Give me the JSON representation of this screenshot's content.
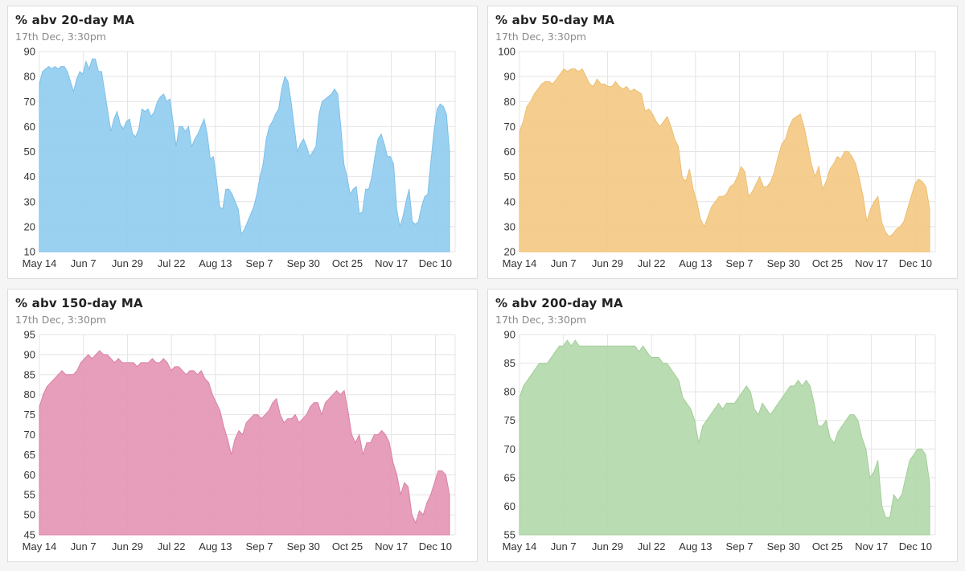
{
  "charts": [
    {
      "title": "% abv 20-day MA",
      "subtitle": "17th Dec, 3:30pm",
      "color": "#8fccf0",
      "line_color": "#7fbfe8"
    },
    {
      "title": "% abv 50-day MA",
      "subtitle": "17th Dec, 3:30pm",
      "color": "#f4c983",
      "line_color": "#ecbd72"
    },
    {
      "title": "% abv 150-day MA",
      "subtitle": "17th Dec, 3:30pm",
      "color": "#e393b3",
      "line_color": "#d982a5"
    },
    {
      "title": "% abv 200-day MA",
      "subtitle": "17th Dec, 3:30pm",
      "color": "#b2d8aa",
      "line_color": "#a3cd9a"
    }
  ],
  "chart_data": [
    {
      "type": "area",
      "title": "% abv 20-day MA",
      "xlabel": "",
      "ylabel": "",
      "x_ticks": [
        "May 14",
        "Jun 7",
        "Jun 29",
        "Jul 22",
        "Aug 13",
        "Sep 7",
        "Sep 30",
        "Oct 25",
        "Nov 17",
        "Dec 10"
      ],
      "y_ticks": [
        10,
        20,
        30,
        40,
        50,
        60,
        70,
        80,
        90
      ],
      "ylim": [
        10,
        90
      ],
      "grid": true,
      "values": [
        77,
        82,
        83,
        84,
        83,
        84,
        83,
        84,
        84,
        82,
        78,
        74,
        79,
        82,
        81,
        86,
        83,
        87,
        87,
        82,
        82,
        74,
        66,
        58,
        63,
        66,
        61,
        59,
        62,
        63,
        57,
        56,
        59,
        67,
        66,
        67,
        64,
        66,
        70,
        72,
        73,
        70,
        71,
        62,
        52,
        60,
        60,
        58,
        60,
        52,
        55,
        57,
        60,
        63,
        57,
        47,
        48,
        39,
        28,
        27,
        35,
        35,
        33,
        30,
        27,
        17,
        19,
        22,
        25,
        28,
        33,
        40,
        45,
        55,
        60,
        62,
        65,
        67,
        75,
        80,
        78,
        70,
        60,
        50,
        53,
        55,
        52,
        48,
        50,
        52,
        65,
        70,
        71,
        72,
        73,
        75,
        73,
        60,
        45,
        40,
        33,
        35,
        36,
        25,
        26,
        35,
        35,
        40,
        48,
        55,
        57,
        53,
        48,
        48,
        45,
        27,
        20,
        24,
        30,
        35,
        22,
        21,
        22,
        28,
        32,
        33,
        46,
        58,
        67,
        69,
        68,
        65,
        50
      ]
    },
    {
      "type": "area",
      "title": "% abv 50-day MA",
      "xlabel": "",
      "ylabel": "",
      "x_ticks": [
        "May 14",
        "Jun 7",
        "Jun 29",
        "Jul 22",
        "Aug 13",
        "Sep 7",
        "Sep 30",
        "Oct 25",
        "Nov 17",
        "Dec 10"
      ],
      "y_ticks": [
        20,
        30,
        40,
        50,
        60,
        70,
        80,
        90,
        100
      ],
      "ylim": [
        20,
        100
      ],
      "grid": true,
      "values": [
        68,
        72,
        78,
        80,
        83,
        85,
        87,
        88,
        88,
        87,
        89,
        91,
        93,
        92,
        93,
        93,
        92,
        93,
        90,
        87,
        86,
        89,
        87,
        87,
        86,
        86,
        88,
        86,
        85,
        86,
        84,
        85,
        84,
        83,
        76,
        77,
        75,
        72,
        70,
        72,
        74,
        70,
        65,
        62,
        50,
        48,
        53,
        45,
        40,
        33,
        30,
        34,
        38,
        40,
        42,
        42,
        43,
        46,
        47,
        50,
        54,
        52,
        42,
        44,
        47,
        50,
        46,
        46,
        48,
        52,
        58,
        63,
        65,
        70,
        73,
        74,
        75,
        70,
        63,
        55,
        50,
        54,
        45,
        48,
        53,
        55,
        58,
        57,
        60,
        60,
        58,
        55,
        49,
        42,
        32,
        37,
        40,
        42,
        32,
        28,
        26,
        27,
        29,
        30,
        32,
        37,
        42,
        47,
        49,
        48,
        46,
        37
      ]
    },
    {
      "type": "area",
      "title": "% abv 150-day MA",
      "xlabel": "",
      "ylabel": "",
      "x_ticks": [
        "May 14",
        "Jun 7",
        "Jun 29",
        "Jul 22",
        "Aug 13",
        "Sep 7",
        "Sep 30",
        "Oct 25",
        "Nov 17",
        "Dec 10"
      ],
      "y_ticks": [
        45,
        50,
        55,
        60,
        65,
        70,
        75,
        80,
        85,
        90,
        95
      ],
      "ylim": [
        45,
        95
      ],
      "grid": true,
      "values": [
        77,
        80,
        82,
        83,
        84,
        85,
        86,
        85,
        85,
        85,
        86,
        88,
        89,
        90,
        89,
        90,
        91,
        90,
        90,
        89,
        88,
        89,
        88,
        88,
        88,
        88,
        87,
        88,
        88,
        88,
        89,
        88,
        88,
        89,
        88,
        86,
        87,
        87,
        86,
        85,
        86,
        86,
        85,
        86,
        84,
        83,
        80,
        78,
        76,
        72,
        69,
        65,
        69,
        71,
        70,
        73,
        74,
        75,
        75,
        74,
        75,
        76,
        78,
        79,
        75,
        73,
        74,
        74,
        75,
        73,
        74,
        75,
        77,
        78,
        78,
        75,
        78,
        79,
        80,
        81,
        80,
        81,
        76,
        70,
        68,
        70,
        65,
        68,
        68,
        70,
        70,
        71,
        70,
        68,
        63,
        60,
        55,
        58,
        57,
        50,
        48,
        51,
        50,
        53,
        55,
        58,
        61,
        61,
        60,
        55
      ]
    },
    {
      "type": "area",
      "title": "% abv 200-day MA",
      "xlabel": "",
      "ylabel": "",
      "x_ticks": [
        "May 14",
        "Jun 7",
        "Jun 29",
        "Jul 22",
        "Aug 13",
        "Sep 7",
        "Sep 30",
        "Oct 25",
        "Nov 17",
        "Dec 10"
      ],
      "y_ticks": [
        55,
        60,
        65,
        70,
        75,
        80,
        85,
        90
      ],
      "ylim": [
        55,
        90
      ],
      "grid": true,
      "values": [
        79,
        81,
        82,
        83,
        84,
        85,
        85,
        85,
        86,
        87,
        88,
        88,
        89,
        88,
        89,
        88,
        88,
        88,
        88,
        88,
        88,
        88,
        88,
        88,
        88,
        88,
        88,
        88,
        88,
        88,
        87,
        88,
        87,
        86,
        86,
        86,
        85,
        85,
        84,
        83,
        82,
        79,
        78,
        77,
        75,
        71,
        74,
        75,
        76,
        77,
        78,
        77,
        78,
        78,
        78,
        79,
        80,
        81,
        80,
        77,
        76,
        78,
        77,
        76,
        77,
        78,
        79,
        80,
        81,
        81,
        82,
        81,
        82,
        81,
        78,
        74,
        74,
        75,
        72,
        71,
        73,
        74,
        75,
        76,
        76,
        75,
        72,
        70,
        65,
        66,
        68,
        60,
        58,
        58,
        62,
        61,
        62,
        65,
        68,
        69,
        70,
        70,
        69,
        64
      ]
    }
  ]
}
